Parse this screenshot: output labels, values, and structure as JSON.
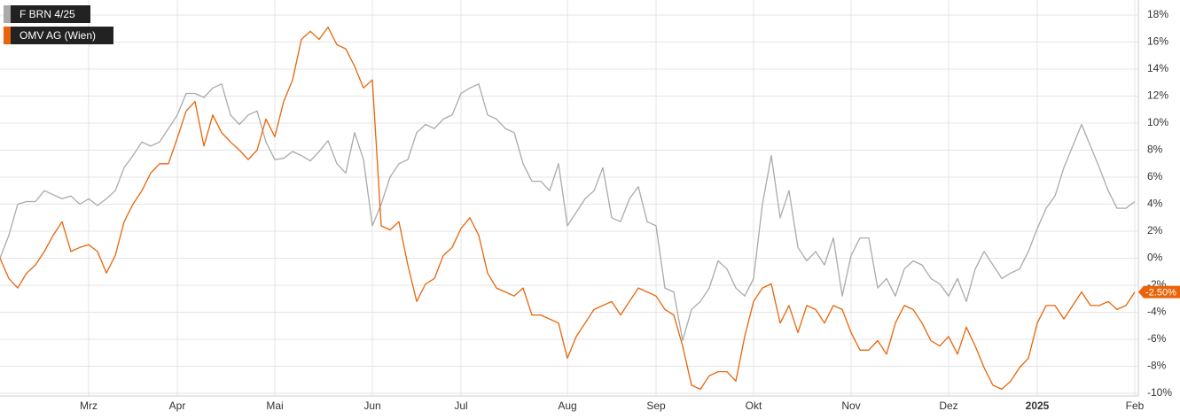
{
  "chart_data": {
    "type": "line",
    "categories": [
      null,
      null,
      null,
      null,
      null,
      null,
      null,
      null,
      null,
      null,
      "Mrz",
      null,
      null,
      null,
      null,
      null,
      null,
      null,
      null,
      null,
      "Apr",
      null,
      null,
      null,
      null,
      null,
      null,
      null,
      null,
      null,
      null,
      "Mai",
      null,
      null,
      null,
      null,
      null,
      null,
      null,
      null,
      null,
      null,
      "Jun",
      null,
      null,
      null,
      null,
      null,
      null,
      null,
      null,
      null,
      "Jul",
      null,
      null,
      null,
      null,
      null,
      null,
      null,
      null,
      null,
      null,
      null,
      "Aug",
      null,
      null,
      null,
      null,
      null,
      null,
      null,
      null,
      null,
      "Sep",
      null,
      null,
      null,
      null,
      null,
      null,
      null,
      null,
      null,
      null,
      "Okt",
      null,
      null,
      null,
      null,
      null,
      null,
      null,
      null,
      null,
      null,
      "Nov",
      null,
      null,
      null,
      null,
      null,
      null,
      null,
      null,
      null,
      null,
      "Dez",
      null,
      null,
      null,
      null,
      null,
      null,
      null,
      null,
      null,
      "2025",
      null,
      null,
      null,
      null,
      null,
      null,
      null,
      null,
      null,
      null,
      "Feb"
    ],
    "series": [
      {
        "name": "F BRN 4/25",
        "color": "#aaaaaa",
        "values": [
          0,
          1.7,
          4.0,
          4.2,
          4.2,
          5.0,
          4.7,
          4.4,
          4.6,
          4.0,
          4.4,
          3.9,
          4.4,
          5.0,
          6.7,
          7.6,
          8.6,
          8.3,
          8.6,
          9.6,
          10.6,
          12.2,
          12.2,
          11.9,
          12.6,
          12.9,
          10.6,
          9.9,
          10.6,
          10.9,
          8.6,
          7.3,
          7.4,
          7.9,
          7.6,
          7.2,
          7.9,
          8.7,
          7.0,
          6.3,
          9.3,
          7.3,
          2.4,
          4.0,
          6.0,
          7.0,
          7.3,
          9.3,
          9.9,
          9.6,
          10.3,
          10.6,
          12.2,
          12.6,
          12.9,
          10.6,
          10.3,
          9.6,
          9.3,
          7.0,
          5.7,
          5.7,
          5.0,
          7.0,
          2.4,
          3.4,
          4.4,
          5.0,
          6.7,
          3.0,
          2.7,
          4.4,
          5.3,
          2.7,
          2.4,
          -2.2,
          -2.5,
          -6.1,
          -3.8,
          -3.2,
          -2.2,
          -0.2,
          -0.8,
          -2.2,
          -2.8,
          -1.5,
          4.0,
          7.6,
          3.0,
          5.0,
          0.8,
          -0.2,
          0.5,
          -0.5,
          1.5,
          -2.8,
          0.2,
          1.5,
          1.5,
          -2.2,
          -1.5,
          -2.8,
          -0.8,
          -0.2,
          -0.5,
          -1.5,
          -1.9,
          -2.8,
          -1.5,
          -3.2,
          -0.8,
          0.5,
          -0.5,
          -1.5,
          -1.1,
          -0.8,
          0.5,
          2.2,
          3.7,
          4.6,
          6.7,
          8.3,
          9.9,
          8.3,
          6.7,
          5.0,
          3.7,
          3.7,
          4.2
        ]
      },
      {
        "name": "OMV AG (Wien)",
        "color": "#e8650a",
        "values": [
          0,
          -1.5,
          -2.2,
          -1.1,
          -0.5,
          0.5,
          1.7,
          2.7,
          0.5,
          0.8,
          1.0,
          0.5,
          -1.1,
          0.2,
          2.7,
          4.0,
          5.0,
          6.3,
          7.0,
          7.0,
          8.9,
          10.9,
          11.6,
          8.3,
          10.6,
          9.3,
          8.6,
          8.0,
          7.3,
          8.0,
          10.3,
          9.0,
          11.6,
          13.2,
          16.2,
          16.8,
          16.2,
          17.1,
          15.8,
          15.5,
          14.2,
          12.6,
          13.2,
          2.4,
          2.1,
          2.7,
          -0.5,
          -3.2,
          -1.9,
          -1.5,
          0.2,
          0.8,
          2.2,
          3.0,
          1.7,
          -1.1,
          -2.2,
          -2.5,
          -2.8,
          -2.2,
          -4.2,
          -4.2,
          -4.5,
          -4.8,
          -7.4,
          -5.8,
          -4.8,
          -3.8,
          -3.5,
          -3.2,
          -4.2,
          -3.2,
          -2.2,
          -2.5,
          -2.8,
          -3.8,
          -4.2,
          -6.5,
          -9.4,
          -9.7,
          -8.7,
          -8.4,
          -8.4,
          -9.1,
          -5.8,
          -3.2,
          -2.2,
          -1.9,
          -4.8,
          -3.5,
          -5.5,
          -3.5,
          -3.8,
          -4.8,
          -3.5,
          -3.8,
          -5.5,
          -6.8,
          -6.8,
          -6.1,
          -7.1,
          -4.8,
          -3.5,
          -3.8,
          -4.8,
          -6.1,
          -6.5,
          -5.8,
          -7.1,
          -5.1,
          -6.5,
          -8.1,
          -9.4,
          -9.7,
          -9.1,
          -8.1,
          -7.4,
          -4.8,
          -3.5,
          -3.5,
          -4.5,
          -3.5,
          -2.5,
          -3.5,
          -3.5,
          -3.2,
          -3.8,
          -3.5,
          -2.5
        ],
        "value_labels": [
          null,
          null,
          null,
          null,
          null,
          null,
          null,
          null,
          null,
          null,
          null,
          null,
          null,
          null,
          null,
          null,
          null,
          null,
          null,
          null,
          null,
          null,
          null,
          null,
          null,
          null,
          null,
          null,
          null,
          null,
          null,
          null,
          null,
          null,
          null,
          null,
          null,
          null,
          null,
          null,
          null,
          null,
          null,
          null,
          null,
          null,
          null,
          null,
          null,
          null,
          null,
          null,
          null,
          null,
          null,
          null,
          null,
          null,
          null,
          null,
          null,
          null,
          null,
          null,
          null,
          null,
          null,
          null,
          null,
          null,
          null,
          null,
          null,
          null,
          null,
          null,
          null,
          null,
          null,
          null,
          null,
          null,
          null,
          null,
          null,
          null,
          null,
          null,
          null,
          null,
          null,
          null,
          null,
          null,
          null,
          null,
          null,
          null,
          null,
          null,
          null,
          null,
          null,
          null,
          null,
          null,
          null,
          null,
          null,
          null,
          null,
          null,
          null,
          null,
          null,
          null,
          null,
          null,
          null,
          null,
          null,
          null,
          null,
          null,
          null,
          null,
          null,
          null,
          "-2.50%"
        ]
      }
    ],
    "ylim": [
      -10,
      18
    ],
    "yticks": [
      {
        "value": -10,
        "label": "-10%"
      },
      {
        "value": -8,
        "label": "-8%"
      },
      {
        "value": -6,
        "label": "-6%"
      },
      {
        "value": -4,
        "label": "-4%"
      },
      {
        "value": -2,
        "label": "-2%"
      },
      {
        "value": 0,
        "label": "0%"
      },
      {
        "value": 2,
        "label": "2%"
      },
      {
        "value": 4,
        "label": "4%"
      },
      {
        "value": 6,
        "label": "6%"
      },
      {
        "value": 8,
        "label": "8%"
      },
      {
        "value": 10,
        "label": "10%"
      },
      {
        "value": 12,
        "label": "12%"
      },
      {
        "value": 14,
        "label": "14%"
      },
      {
        "value": 16,
        "label": "16%"
      },
      {
        "value": 18,
        "label": "18%"
      }
    ],
    "grid": true,
    "legend": "top-left"
  }
}
